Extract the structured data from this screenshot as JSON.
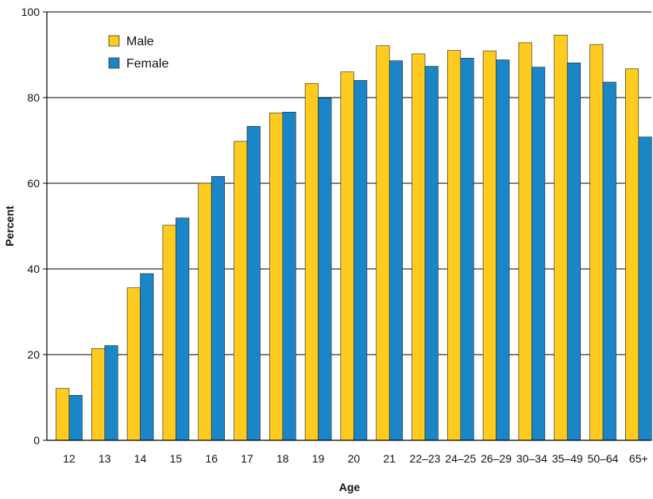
{
  "chart_data": {
    "type": "bar",
    "title": "",
    "xlabel": "Age",
    "ylabel": "Percent",
    "ylim": [
      0,
      100
    ],
    "yticks": [
      0,
      20,
      40,
      60,
      80,
      100
    ],
    "grid": "horizontal",
    "legend_position": "top-left",
    "categories": [
      "12",
      "13",
      "14",
      "15",
      "16",
      "17",
      "18",
      "19",
      "20",
      "21",
      "22–23",
      "24–25",
      "26–29",
      "30–34",
      "35–49",
      "50–64",
      "65+"
    ],
    "series": [
      {
        "name": "Male",
        "color": "#FFCB1F",
        "values": [
          12.1,
          21.4,
          35.6,
          50.2,
          60.0,
          69.8,
          76.4,
          83.3,
          86.0,
          92.1,
          90.2,
          91.0,
          90.9,
          92.8,
          94.6,
          92.4,
          86.7
        ]
      },
      {
        "name": "Female",
        "color": "#1A86C8",
        "values": [
          10.5,
          22.1,
          38.9,
          51.9,
          61.6,
          73.3,
          76.6,
          79.9,
          84.0,
          88.6,
          87.3,
          89.2,
          88.8,
          87.1,
          88.1,
          83.6,
          70.8
        ]
      }
    ]
  }
}
